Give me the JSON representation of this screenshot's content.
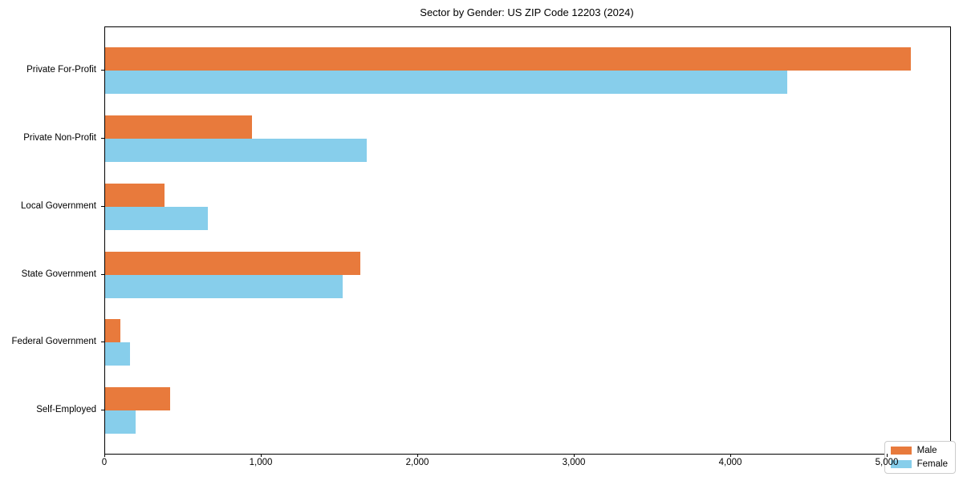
{
  "title": "Sector by Gender: US ZIP Code 12203 (2024)",
  "chart_data": {
    "type": "bar",
    "orientation": "horizontal",
    "title": "Sector by Gender: US ZIP Code 12203 (2024)",
    "categories": [
      "Private For-Profit",
      "Private Non-Profit",
      "Local Government",
      "State Government",
      "Federal Government",
      "Self-Employed"
    ],
    "series": [
      {
        "name": "Male",
        "color": "#e87a3c",
        "values": [
          5150,
          940,
          380,
          1630,
          95,
          415
        ]
      },
      {
        "name": "Female",
        "color": "#87ceeb",
        "values": [
          4360,
          1670,
          655,
          1520,
          160,
          195
        ]
      }
    ],
    "xlabel": "",
    "ylabel": "",
    "xlim": [
      0,
      5400
    ],
    "x_ticks": [
      0,
      1000,
      2000,
      3000,
      4000,
      5000
    ],
    "x_tick_labels": [
      "0",
      "1,000",
      "2,000",
      "3,000",
      "4,000",
      "5,000"
    ],
    "grid": false,
    "legend_position": "lower right",
    "category_order": "top-to-bottom"
  },
  "legend": {
    "items": [
      {
        "label": "Male",
        "color": "#e87a3c"
      },
      {
        "label": "Female",
        "color": "#87ceeb"
      }
    ]
  }
}
